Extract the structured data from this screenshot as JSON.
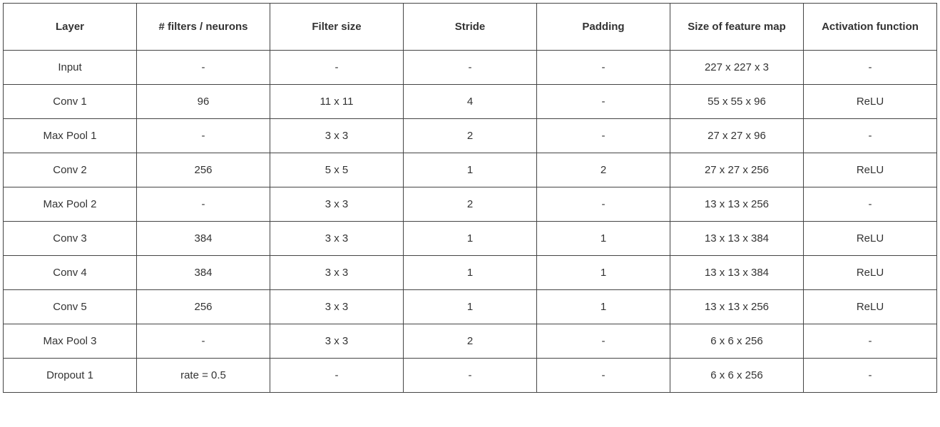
{
  "table": {
    "type": "table",
    "background_color": "#ffffff",
    "border_color": "#444444",
    "text_color": "#333333",
    "header_fontsize": 15,
    "cell_fontsize": 15,
    "column_widths_pct": [
      14.3,
      14.3,
      14.3,
      14.3,
      14.3,
      14.3,
      14.3
    ],
    "columns": [
      "Layer",
      "# filters / neurons",
      "Filter size",
      "Stride",
      "Padding",
      "Size of feature map",
      "Activation function"
    ],
    "rows": [
      [
        "Input",
        "-",
        "-",
        "-",
        "-",
        "227 x 227 x 3",
        "-"
      ],
      [
        "Conv 1",
        "96",
        "11 x 11",
        "4",
        "-",
        "55 x 55 x 96",
        "ReLU"
      ],
      [
        "Max Pool 1",
        "-",
        "3 x 3",
        "2",
        "-",
        "27 x 27 x 96",
        "-"
      ],
      [
        "Conv 2",
        "256",
        "5 x 5",
        "1",
        "2",
        "27 x 27 x 256",
        "ReLU"
      ],
      [
        "Max Pool 2",
        "-",
        "3 x 3",
        "2",
        "-",
        "13 x 13 x 256",
        "-"
      ],
      [
        "Conv 3",
        "384",
        "3 x 3",
        "1",
        "1",
        "13 x 13 x 384",
        "ReLU"
      ],
      [
        "Conv 4",
        "384",
        "3 x 3",
        "1",
        "1",
        "13 x 13 x 384",
        "ReLU"
      ],
      [
        "Conv 5",
        "256",
        "3 x 3",
        "1",
        "1",
        "13 x 13 x 256",
        "ReLU"
      ],
      [
        "Max Pool 3",
        "-",
        "3 x 3",
        "2",
        "-",
        "6 x 6 x 256",
        "-"
      ],
      [
        "Dropout 1",
        "rate = 0.5",
        "-",
        "-",
        "-",
        "6 x 6 x 256",
        "-"
      ]
    ]
  }
}
